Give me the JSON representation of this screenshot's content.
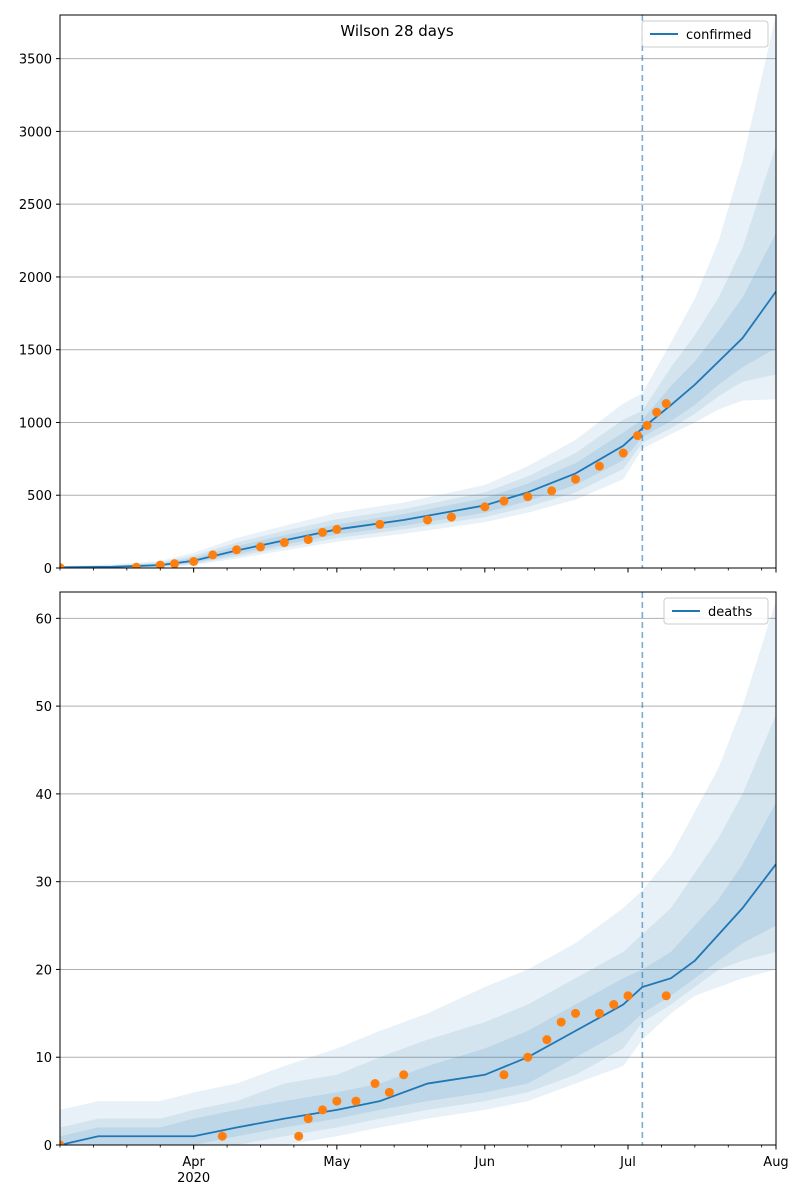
{
  "title": "Wilson 28 days",
  "colors": {
    "model_line": "#1f77b4",
    "observed_points": "#ff7f0e",
    "band": "#1f77b4",
    "grid": "#b0b0b0",
    "vline": "#1f77b4"
  },
  "x_axis": {
    "start": "2020-03-04",
    "end": "2020-08-01",
    "ticks": [
      {
        "date": "2020-04-01",
        "label": "Apr",
        "sublabel": "2020"
      },
      {
        "date": "2020-05-01",
        "label": "May",
        "sublabel": ""
      },
      {
        "date": "2020-06-01",
        "label": "Jun",
        "sublabel": ""
      },
      {
        "date": "2020-07-01",
        "label": "Jul",
        "sublabel": ""
      },
      {
        "date": "2020-08-01",
        "label": "Aug",
        "sublabel": ""
      }
    ],
    "forecast_start": "2020-07-04"
  },
  "chart_data": [
    {
      "type": "line",
      "legend": "confirmed",
      "legend_position": "top-right",
      "grid": true,
      "ylim": [
        0,
        3800
      ],
      "yticks": [
        0,
        500,
        1000,
        1500,
        2000,
        2500,
        3000,
        3500
      ],
      "model": {
        "x": [
          "2020-03-04",
          "2020-03-15",
          "2020-03-25",
          "2020-04-01",
          "2020-04-10",
          "2020-04-20",
          "2020-05-01",
          "2020-05-15",
          "2020-06-01",
          "2020-06-10",
          "2020-06-20",
          "2020-06-30",
          "2020-07-04",
          "2020-07-10",
          "2020-07-15",
          "2020-07-20",
          "2020-07-25",
          "2020-08-01"
        ],
        "median": [
          5,
          8,
          20,
          50,
          120,
          190,
          265,
          330,
          430,
          520,
          650,
          840,
          960,
          1120,
          1260,
          1420,
          1580,
          1900
        ],
        "band_inner": {
          "lower": [
            0,
            2,
            10,
            35,
            95,
            160,
            230,
            290,
            380,
            460,
            570,
            740,
            900,
            1010,
            1120,
            1260,
            1380,
            1510
          ],
          "upper": [
            8,
            14,
            30,
            70,
            150,
            225,
            300,
            370,
            480,
            580,
            720,
            930,
            1020,
            1250,
            1420,
            1630,
            1860,
            2300
          ]
        },
        "band_mid": {
          "lower": [
            0,
            1,
            6,
            28,
            80,
            140,
            205,
            265,
            350,
            420,
            520,
            680,
            860,
            960,
            1060,
            1180,
            1280,
            1330
          ],
          "upper": [
            10,
            18,
            38,
            85,
            175,
            255,
            335,
            405,
            520,
            630,
            790,
            1020,
            1080,
            1380,
            1600,
            1860,
            2200,
            2900
          ]
        },
        "band_outer": {
          "lower": [
            0,
            0,
            3,
            20,
            65,
            120,
            180,
            235,
            315,
            380,
            470,
            610,
            820,
            920,
            1000,
            1090,
            1150,
            1160
          ],
          "upper": [
            14,
            24,
            48,
            105,
            205,
            290,
            380,
            450,
            570,
            700,
            880,
            1130,
            1200,
            1550,
            1850,
            2250,
            2800,
            3800
          ]
        }
      },
      "observed": {
        "x": [
          "2020-03-04",
          "2020-03-20",
          "2020-03-25",
          "2020-03-28",
          "2020-04-01",
          "2020-04-05",
          "2020-04-10",
          "2020-04-15",
          "2020-04-20",
          "2020-04-25",
          "2020-04-28",
          "2020-05-01",
          "2020-05-10",
          "2020-05-20",
          "2020-05-25",
          "2020-06-01",
          "2020-06-05",
          "2020-06-10",
          "2020-06-15",
          "2020-06-20",
          "2020-06-25",
          "2020-06-30",
          "2020-07-03",
          "2020-07-05",
          "2020-07-07",
          "2020-07-09"
        ],
        "y": [
          2,
          5,
          20,
          30,
          45,
          90,
          125,
          145,
          175,
          195,
          245,
          265,
          300,
          330,
          350,
          420,
          460,
          490,
          530,
          610,
          700,
          790,
          910,
          980,
          1070,
          1130
        ]
      }
    },
    {
      "type": "line",
      "legend": "deaths",
      "legend_position": "top-right",
      "grid": true,
      "ylim": [
        0,
        63
      ],
      "yticks": [
        0,
        10,
        20,
        30,
        40,
        50,
        60
      ],
      "model": {
        "x": [
          "2020-03-04",
          "2020-03-12",
          "2020-03-25",
          "2020-04-01",
          "2020-04-10",
          "2020-04-20",
          "2020-05-01",
          "2020-05-10",
          "2020-05-20",
          "2020-06-01",
          "2020-06-10",
          "2020-06-20",
          "2020-06-30",
          "2020-07-04",
          "2020-07-10",
          "2020-07-15",
          "2020-07-20",
          "2020-07-25",
          "2020-08-01"
        ],
        "median": [
          0,
          1,
          1,
          1,
          2,
          3,
          4,
          5,
          7,
          8,
          10,
          13,
          16,
          18,
          19,
          21,
          24,
          27,
          32
        ],
        "band_inner": {
          "lower": [
            0,
            0,
            0,
            0,
            1,
            2,
            3,
            4,
            5,
            6,
            7,
            10,
            13,
            15,
            17,
            19,
            21,
            23,
            25
          ],
          "upper": [
            1,
            2,
            2,
            3,
            4,
            5,
            6,
            7,
            9,
            11,
            13,
            16,
            19,
            20,
            22,
            25,
            28,
            32,
            39
          ]
        },
        "band_mid": {
          "lower": [
            0,
            0,
            0,
            0,
            0,
            1,
            2,
            3,
            4,
            5,
            6,
            8,
            11,
            14,
            16,
            18,
            20,
            21,
            22
          ],
          "upper": [
            2,
            3,
            3,
            4,
            5,
            7,
            8,
            10,
            12,
            14,
            16,
            19,
            22,
            24,
            27,
            31,
            35,
            40,
            49
          ]
        },
        "band_outer": {
          "lower": [
            0,
            0,
            0,
            0,
            0,
            0,
            1,
            2,
            3,
            4,
            5,
            7,
            9,
            12,
            15,
            17,
            18,
            19,
            20
          ],
          "upper": [
            4,
            5,
            5,
            6,
            7,
            9,
            11,
            13,
            15,
            18,
            20,
            23,
            27,
            29,
            33,
            38,
            43,
            50,
            62
          ]
        }
      },
      "observed": {
        "x": [
          "2020-03-04",
          "2020-04-07",
          "2020-04-23",
          "2020-04-25",
          "2020-04-28",
          "2020-05-01",
          "2020-05-05",
          "2020-05-09",
          "2020-05-12",
          "2020-05-15",
          "2020-06-05",
          "2020-06-10",
          "2020-06-14",
          "2020-06-17",
          "2020-06-20",
          "2020-06-25",
          "2020-06-28",
          "2020-07-01",
          "2020-07-09"
        ],
        "y": [
          0,
          1,
          1,
          3,
          4,
          5,
          5,
          7,
          6,
          8,
          8,
          10,
          12,
          14,
          15,
          15,
          16,
          17,
          17
        ]
      }
    }
  ]
}
